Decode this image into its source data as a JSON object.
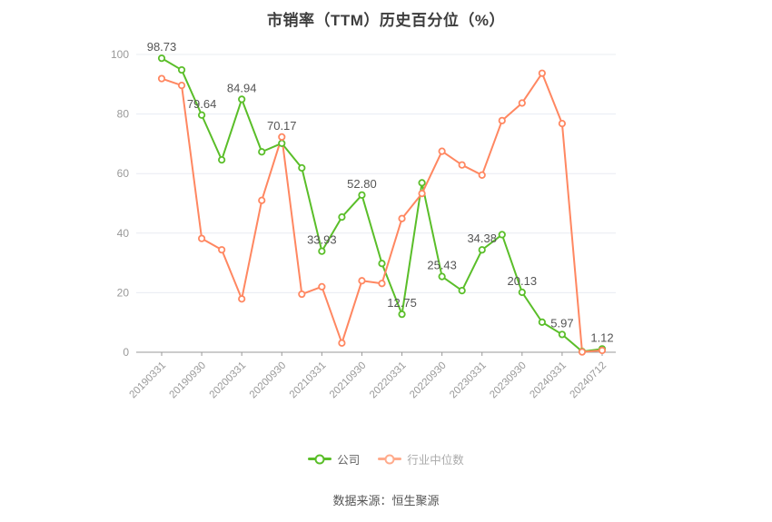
{
  "title": "市销率（TTM）历史百分位（%）",
  "source_note": "数据来源：恒生聚源",
  "legend": {
    "items": [
      {
        "label": "公司",
        "marker_color": "#5ABE29",
        "text_color": "#666666"
      },
      {
        "label": "行业中位数",
        "marker_color": "#FFAB8C",
        "text_color": "#AAAAAA"
      }
    ]
  },
  "colors": {
    "company_line": "#5ABE29",
    "industry_line": "#FF8761",
    "grid_line": "#E8ECF2",
    "axis_line": "#999999",
    "tick_text": "#999999",
    "data_label_text": "#555555",
    "background": "#FFFFFF"
  },
  "chart_data": {
    "type": "line",
    "title": "市销率（TTM）历史百分位（%）",
    "x": [
      "20190331",
      "20190630",
      "20190930",
      "20191231",
      "20200331",
      "20200630",
      "20200930",
      "20201231",
      "20210331",
      "20210630",
      "20210930",
      "20211231",
      "20220331",
      "20220630",
      "20220930",
      "20221231",
      "20230331",
      "20230630",
      "20230930",
      "20231231",
      "20240331",
      "20240630",
      "20240712"
    ],
    "visible_x_tick_labels": [
      "20190331",
      "20190930",
      "20200331",
      "20200930",
      "20210331",
      "20210930",
      "20220331",
      "20220930",
      "20230331",
      "20230930",
      "20240331",
      "20240712"
    ],
    "x_tick_indices": [
      0,
      2,
      4,
      6,
      8,
      10,
      12,
      14,
      16,
      18,
      20,
      22
    ],
    "ylim": [
      0,
      100
    ],
    "yticks": [
      0,
      20,
      40,
      60,
      80,
      100
    ],
    "grid": true,
    "legend_position": "bottom",
    "series": [
      {
        "name": "公司",
        "color": "#5ABE29",
        "values": [
          98.73,
          94.8,
          79.64,
          64.6,
          84.94,
          67.3,
          70.17,
          61.9,
          33.93,
          45.4,
          52.8,
          29.8,
          12.75,
          56.9,
          25.43,
          20.7,
          34.38,
          39.5,
          20.13,
          10.1,
          5.97,
          0.25,
          1.12
        ],
        "point_labels": {
          "0": "98.73",
          "2": "79.64",
          "4": "84.94",
          "6": "70.17",
          "8": "33.93",
          "10": "52.80",
          "12": "12.75",
          "14": "25.43",
          "16": "34.38",
          "18": "20.13",
          "20": "5.97",
          "22": "1.12"
        }
      },
      {
        "name": "行业中位数",
        "color": "#FF8761",
        "values": [
          91.9,
          89.6,
          38.2,
          34.4,
          17.9,
          51.0,
          72.3,
          19.5,
          22.0,
          3.1,
          24.0,
          23.1,
          44.9,
          53.3,
          67.5,
          62.9,
          59.5,
          77.8,
          83.7,
          93.7,
          76.8,
          0.1,
          0.6
        ],
        "point_labels": {}
      }
    ]
  }
}
